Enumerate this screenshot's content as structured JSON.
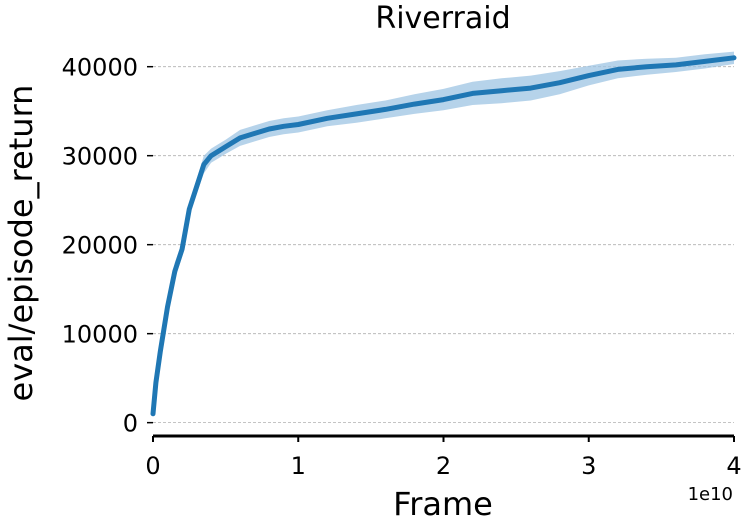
{
  "chart_data": {
    "type": "line",
    "title": "Riverraid",
    "xlabel": "Frame",
    "ylabel": "eval/episode_return",
    "x_offset_label": "1e10",
    "xlim": [
      0,
      4
    ],
    "ylim": [
      -1500,
      43000
    ],
    "x_ticks": [
      0,
      1,
      2,
      3,
      4
    ],
    "x_tick_labels": [
      "0",
      "1",
      "2",
      "3",
      "4"
    ],
    "y_ticks": [
      0,
      10000,
      20000,
      30000,
      40000
    ],
    "y_tick_labels": [
      "0",
      "10000",
      "20000",
      "30000",
      "40000"
    ],
    "grid": "horizontal dashed",
    "legend": "none",
    "colors": {
      "line": "#1f77b4",
      "band": "#9ec4e3",
      "axis": "#000000",
      "grid": "#b0b0b0"
    },
    "series": [
      {
        "x": [
          0,
          0.02,
          0.05,
          0.1,
          0.15,
          0.2,
          0.25,
          0.3,
          0.35,
          0.4,
          0.45,
          0.5,
          0.6,
          0.7,
          0.8,
          0.9,
          1.0,
          1.2,
          1.4,
          1.6,
          1.8,
          2.0,
          2.2,
          2.4,
          2.6,
          2.8,
          3.0,
          3.2,
          3.4,
          3.6,
          3.8,
          4.0
        ],
        "y": [
          1000,
          4500,
          8000,
          13000,
          17000,
          19500,
          24000,
          26500,
          29000,
          30000,
          30500,
          31000,
          32000,
          32500,
          33000,
          33300,
          33500,
          34200,
          34700,
          35200,
          35800,
          36300,
          37000,
          37300,
          37600,
          38200,
          39000,
          39700,
          40000,
          40200,
          40600,
          41000
        ],
        "y_low": [
          600,
          3800,
          7200,
          12000,
          16000,
          18700,
          23200,
          25700,
          28000,
          29200,
          29700,
          30200,
          31100,
          31600,
          32100,
          32400,
          32600,
          33300,
          33700,
          34200,
          34700,
          35100,
          35700,
          35900,
          36200,
          36900,
          37900,
          38700,
          39100,
          39400,
          39800,
          40300
        ],
        "y_high": [
          1400,
          5200,
          8800,
          14000,
          18000,
          20300,
          24800,
          27300,
          30000,
          30800,
          31300,
          31800,
          32900,
          33400,
          33900,
          34200,
          34400,
          35100,
          35700,
          36200,
          36900,
          37500,
          38300,
          38700,
          39000,
          39500,
          40100,
          40700,
          40900,
          41000,
          41400,
          41700
        ]
      }
    ]
  }
}
